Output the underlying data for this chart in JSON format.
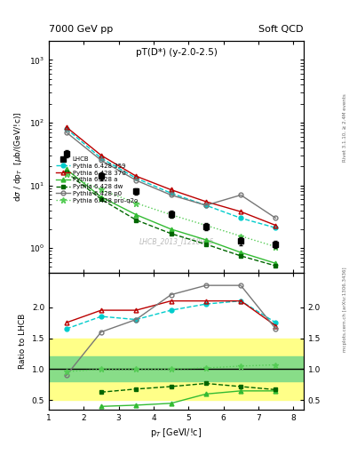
{
  "title_top": "7000 GeV pp",
  "title_right": "Soft QCD",
  "plot_title": "pT(D*) (y-2.0-2.5)",
  "ylabel_main": "dσ / dp_T  [μb/(GeV/!c)]",
  "ylabel_ratio": "Ratio to LHCB",
  "xlabel": "p_T [GeVI/!c]",
  "watermark": "LHCB_2013_I1218996",
  "right_label": "mcplots.cern.ch [arXiv:1306.3436]",
  "rivet_label": "Rivet 3.1.10, ≥ 2.4M events",
  "lhcb_x": [
    1.5,
    2.5,
    3.5,
    4.5,
    5.5,
    6.5,
    7.5
  ],
  "lhcb_y": [
    32.0,
    14.0,
    8.0,
    3.5,
    2.2,
    1.3,
    1.15
  ],
  "lhcb_yerr": [
    4.0,
    2.0,
    1.0,
    0.5,
    0.3,
    0.2,
    0.15
  ],
  "py359_x": [
    1.5,
    2.5,
    3.5,
    4.5,
    5.5,
    6.5,
    7.5
  ],
  "py359_y": [
    80.0,
    27.0,
    13.0,
    7.5,
    4.8,
    3.0,
    2.1
  ],
  "py370_x": [
    1.5,
    2.5,
    3.5,
    4.5,
    5.5,
    6.5,
    7.5
  ],
  "py370_y": [
    85.0,
    30.0,
    14.0,
    8.5,
    5.5,
    3.8,
    2.3
  ],
  "pya_x": [
    1.5,
    2.5,
    3.5,
    4.5,
    5.5,
    6.5,
    7.5
  ],
  "pya_y": [
    18.0,
    6.5,
    3.4,
    2.0,
    1.35,
    0.85,
    0.57
  ],
  "pydw_x": [
    1.5,
    2.5,
    3.5,
    4.5,
    5.5,
    6.5,
    7.5
  ],
  "pydw_y": [
    16.0,
    6.0,
    2.8,
    1.7,
    1.15,
    0.75,
    0.52
  ],
  "pyp0_x": [
    1.5,
    2.5,
    3.5,
    4.5,
    5.5,
    6.5,
    7.5
  ],
  "pyp0_y": [
    70.0,
    25.0,
    12.0,
    7.0,
    4.8,
    7.0,
    3.0
  ],
  "pyproq2o_x": [
    1.5,
    2.5,
    3.5,
    4.5,
    5.5,
    6.5,
    7.5
  ],
  "pyproq2o_y": [
    15.0,
    8.5,
    5.2,
    3.4,
    2.3,
    1.55,
    1.05
  ],
  "ratio_py359_x": [
    1.5,
    2.5,
    3.5,
    4.5,
    5.5,
    6.5,
    7.5
  ],
  "ratio_py359_y": [
    1.65,
    1.85,
    1.8,
    1.95,
    2.05,
    2.1,
    1.75
  ],
  "ratio_py370_x": [
    1.5,
    2.5,
    3.5,
    4.5,
    5.5,
    6.5,
    7.5
  ],
  "ratio_py370_y": [
    1.75,
    1.95,
    1.95,
    2.1,
    2.1,
    2.1,
    1.7
  ],
  "ratio_pya_x": [
    2.5,
    3.5,
    4.5,
    5.5,
    6.5,
    7.5
  ],
  "ratio_pya_y": [
    0.4,
    0.42,
    0.45,
    0.6,
    0.65,
    0.65
  ],
  "ratio_pydw_x": [
    2.5,
    3.5,
    4.5,
    5.5,
    6.5,
    7.5
  ],
  "ratio_pydw_y": [
    0.63,
    0.68,
    0.72,
    0.77,
    0.72,
    0.67
  ],
  "ratio_pyp0_x": [
    1.5,
    2.5,
    3.5,
    4.5,
    5.5,
    6.5,
    7.5
  ],
  "ratio_pyp0_y": [
    0.9,
    1.6,
    1.8,
    2.2,
    2.35,
    2.35,
    1.65
  ],
  "ratio_pyproq2o_x": [
    1.5,
    2.5,
    3.5,
    4.5,
    5.5,
    6.5,
    7.5
  ],
  "ratio_pyproq2o_y": [
    0.96,
    1.0,
    1.0,
    1.0,
    1.02,
    1.05,
    1.07
  ],
  "band_green_lo": 0.8,
  "band_green_hi": 1.2,
  "band_yellow_lo": 0.5,
  "band_yellow_hi": 1.5,
  "color_lhcb": "#000000",
  "color_py359": "#00CCCC",
  "color_py370": "#BB0000",
  "color_pya": "#33BB33",
  "color_pydw": "#006600",
  "color_pyp0": "#777777",
  "color_pyproq2o": "#55CC55",
  "xlim": [
    1.0,
    8.3
  ],
  "ylim_main": [
    0.4,
    2000
  ],
  "ylim_ratio": [
    0.35,
    2.55
  ]
}
